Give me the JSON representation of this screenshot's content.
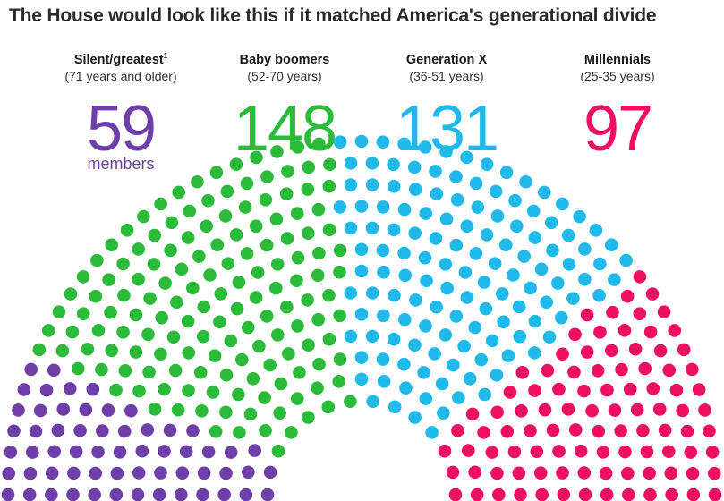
{
  "title": "The House would look like this if it matched America's generational divide",
  "chart_data": {
    "type": "parliament",
    "total_seats": 435,
    "title": "The House would look like this if it matched America's generational divide",
    "count_unit": "members",
    "series": [
      {
        "name": "Silent/greatest",
        "footnote": "1",
        "age_range": "(71 years and older)",
        "value": 59,
        "color": "#6e3fa8"
      },
      {
        "name": "Baby boomers",
        "footnote": "",
        "age_range": "(52-70 years)",
        "value": 148,
        "color": "#2cba3a"
      },
      {
        "name": "Generation X",
        "footnote": "",
        "age_range": "(36-51 years)",
        "value": 131,
        "color": "#21b9ea"
      },
      {
        "name": "Millennials",
        "footnote": "",
        "age_range": "(25-35 years)",
        "value": 97,
        "color": "#ec0f62"
      }
    ]
  }
}
